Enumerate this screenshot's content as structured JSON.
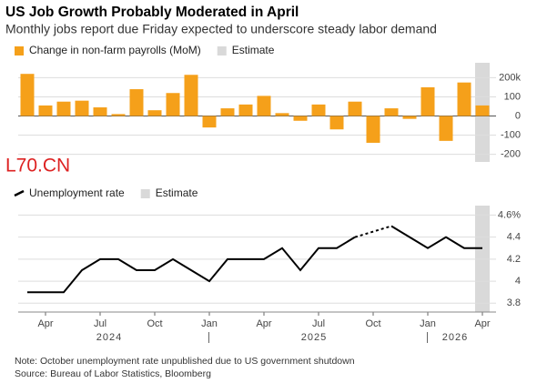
{
  "title": "US Job Growth Probably Moderated in April",
  "subtitle": "Monthly jobs report due Friday expected to underscore steady labor demand",
  "watermark": "L70.CN",
  "note": "Note: October unemployment rate unpublished due to US government shutdown",
  "source": "Source: Bureau of Labor Statistics, Bloomberg",
  "chart_data": [
    {
      "type": "bar",
      "categories": [
        "2024-03",
        "2024-04",
        "2024-05",
        "2024-06",
        "2024-07",
        "2024-08",
        "2024-09",
        "2024-10",
        "2024-11",
        "2024-12",
        "2025-01",
        "2025-02",
        "2025-03",
        "2025-04",
        "2025-05",
        "2025-06",
        "2025-07",
        "2025-08",
        "2025-09",
        "2025-10",
        "2025-11",
        "2025-12",
        "2026-01",
        "2026-02",
        "2026-03",
        "2026-04"
      ],
      "series": [
        {
          "name": "Change in non-farm payrolls (MoM)",
          "color": "#f5a01a",
          "values": [
            220,
            55,
            75,
            80,
            45,
            10,
            140,
            30,
            120,
            215,
            -60,
            40,
            60,
            105,
            15,
            -25,
            60,
            -70,
            75,
            -140,
            40,
            -15,
            150,
            -130,
            175,
            55
          ]
        }
      ],
      "estimate": {
        "label": "Estimate",
        "from": "2026-04",
        "color": "#d9d9d9"
      },
      "ylim": [
        -240,
        240
      ],
      "yticks": [
        {
          "value": 200,
          "label": "200k"
        },
        100,
        0,
        -100,
        -200
      ],
      "grid": true
    },
    {
      "type": "line",
      "categories": [
        "2024-03",
        "2024-04",
        "2024-05",
        "2024-06",
        "2024-07",
        "2024-08",
        "2024-09",
        "2024-10",
        "2024-11",
        "2024-12",
        "2025-01",
        "2025-02",
        "2025-03",
        "2025-04",
        "2025-05",
        "2025-06",
        "2025-07",
        "2025-08",
        "2025-09",
        "2025-10",
        "2025-11",
        "2025-12",
        "2026-01",
        "2026-02",
        "2026-03",
        "2026-04"
      ],
      "series": [
        {
          "name": "Unemployment rate",
          "color": "#000000",
          "values": [
            3.9,
            3.9,
            3.9,
            4.1,
            4.2,
            4.2,
            4.1,
            4.1,
            4.2,
            4.1,
            4.0,
            4.2,
            4.2,
            4.2,
            4.3,
            4.1,
            4.3,
            4.3,
            4.4,
            null,
            4.5,
            4.4,
            4.3,
            4.4,
            4.3,
            4.3
          ]
        }
      ],
      "estimate": {
        "label": "Estimate",
        "from": "2026-04",
        "color": "#d9d9d9"
      },
      "ylim": [
        3.72,
        4.62
      ],
      "yticks": [
        {
          "value": 4.6,
          "label": "4.6%"
        },
        4.4,
        4.2,
        4.0,
        3.8
      ],
      "xticks": [
        {
          "value": "2024-04",
          "label": "Apr"
        },
        {
          "value": "2024-07",
          "label": "Jul"
        },
        {
          "value": "2024-10",
          "label": "Oct"
        },
        {
          "value": "2025-01",
          "label": "Jan"
        },
        {
          "value": "2025-04",
          "label": "Apr"
        },
        {
          "value": "2025-07",
          "label": "Jul"
        },
        {
          "value": "2025-10",
          "label": "Oct"
        },
        {
          "value": "2026-01",
          "label": "Jan"
        },
        {
          "value": "2026-04",
          "label": "Apr"
        }
      ],
      "years": [
        "2024",
        "2025",
        "2026"
      ],
      "grid": true
    }
  ]
}
